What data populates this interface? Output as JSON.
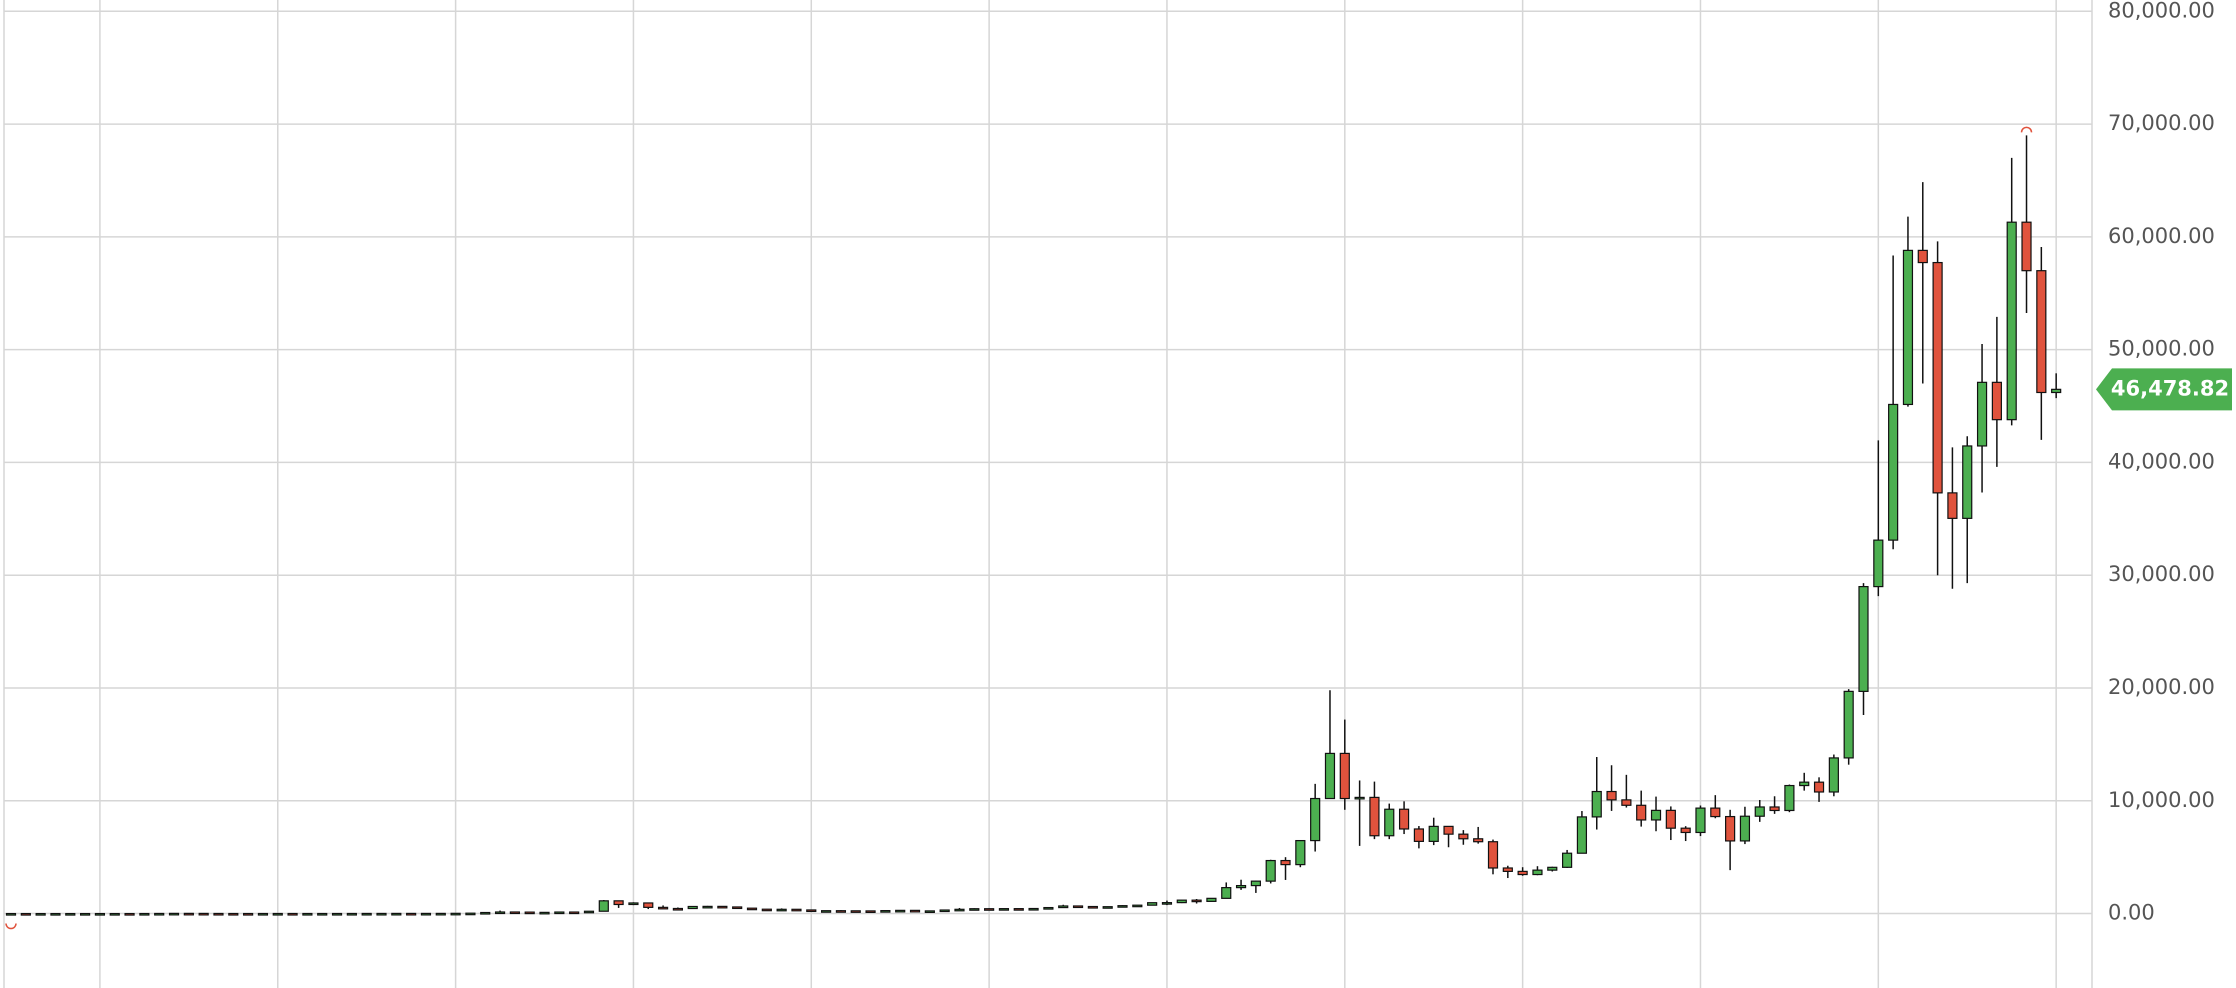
{
  "chart_data": {
    "type": "candlestick",
    "up_color": "#4caf50",
    "down_color": "#e0533d",
    "wick_color": "#111111",
    "grid": true,
    "ylim": [
      -6600,
      81000
    ],
    "yticks": [
      {
        "value": 0,
        "label": "0.00"
      },
      {
        "value": 10000,
        "label": "10,000.00"
      },
      {
        "value": 20000,
        "label": "20,000.00"
      },
      {
        "value": 30000,
        "label": "30,000.00"
      },
      {
        "value": 40000,
        "label": "40,000.00"
      },
      {
        "value": 50000,
        "label": "50,000.00"
      },
      {
        "value": 60000,
        "label": "60,000.00"
      },
      {
        "value": 70000,
        "label": "70,000.00"
      },
      {
        "value": 80000,
        "label": "80,000.00"
      }
    ],
    "last_close_label": "46,478.82",
    "open": [
      0.05,
      0.07,
      0.06,
      0.06,
      0.19,
      0.21,
      0.3,
      0.5,
      0.9,
      0.8,
      3.5,
      8.7,
      16,
      13,
      8,
      5,
      3.2,
      3,
      4.7,
      5.5,
      4.9,
      4.9,
      5,
      5.2,
      6.7,
      9.4,
      10.1,
      12.4,
      11.2,
      12.5,
      13.5,
      20.4,
      33.4,
      93,
      139,
      129,
      97,
      106,
      135,
      132,
      206,
      1129,
      805,
      940,
      550,
      450,
      447,
      627,
      637,
      586,
      478,
      387,
      338,
      378,
      320,
      218,
      254,
      244,
      236,
      230,
      263,
      284,
      230,
      236,
      314,
      377,
      430,
      368,
      437,
      416,
      448,
      531,
      673,
      624,
      573,
      609,
      700,
      743,
      963,
      970,
      1190,
      1080,
      1350,
      2300,
      2480,
      2875,
      4700,
      4340,
      6470,
      10200,
      14200,
      10200,
      10300,
      6900,
      9250,
      7500,
      6400,
      7730,
      7040,
      6630,
      6370,
      4040,
      3740,
      3460,
      3850,
      4100,
      5350,
      8570,
      10820,
      10080,
      9600,
      8300,
      9150,
      7570,
      7190,
      9350,
      8600,
      6440,
      8630,
      9450,
      9140,
      11350,
      11650,
      10780,
      13800,
      19700,
      28990,
      33110,
      45140,
      58800,
      57720,
      37300,
      35040,
      41460,
      47100,
      43790,
      61300,
      57000,
      46200
    ],
    "high": [
      0.1,
      0.07,
      0.2,
      0.2,
      0.5,
      0.3,
      0.5,
      1.1,
      0.9,
      3.8,
      9,
      32,
      17,
      14,
      9,
      5.5,
      3.5,
      4.8,
      7.4,
      6.3,
      5.4,
      5.3,
      5.2,
      6.8,
      9.6,
      16,
      12.6,
      12.8,
      12.8,
      13.8,
      20.4,
      33.6,
      94,
      266,
      140,
      130,
      110,
      137,
      145,
      210,
      1200,
      1160,
      1000,
      940,
      720,
      540,
      630,
      680,
      650,
      600,
      490,
      410,
      460,
      380,
      320,
      265,
      300,
      262,
      247,
      268,
      317,
      285,
      246,
      335,
      495,
      467,
      463,
      448,
      440,
      466,
      550,
      780,
      704,
      626,
      630,
      740,
      750,
      980,
      1150,
      1210,
      1290,
      1350,
      2760,
      3000,
      2920,
      4770,
      5000,
      6470,
      11500,
      19800,
      17200,
      11800,
      11700,
      9750,
      9950,
      7760,
      8500,
      7760,
      7400,
      7680,
      6560,
      4240,
      4110,
      4200,
      4150,
      5640,
      9090,
      13880,
      13150,
      12300,
      10900,
      10370,
      9500,
      7750,
      9580,
      10500,
      9200,
      9470,
      10070,
      10400,
      11440,
      12480,
      12080,
      14100,
      19900,
      29300,
      41950,
      58350,
      61790,
      64850,
      59600,
      41330,
      42320,
      50500,
      52900,
      67000,
      69000,
      59100,
      47900
    ],
    "low": [
      0.05,
      0.06,
      0.06,
      0.06,
      0.19,
      0.2,
      0.3,
      0.5,
      0.7,
      0.6,
      3,
      8,
      12,
      7,
      4.5,
      2,
      2,
      2.8,
      4.6,
      4.3,
      4.7,
      4.8,
      4.9,
      5.2,
      6.5,
      7,
      9.8,
      9.8,
      10.4,
      12.4,
      13,
      19.6,
      33,
      50,
      78,
      86,
      66,
      98,
      121,
      104,
      203,
      500,
      750,
      400,
      440,
      340,
      420,
      540,
      570,
      440,
      350,
      275,
      315,
      300,
      170,
      212,
      240,
      215,
      228,
      220,
      253,
      198,
      226,
      235,
      300,
      350,
      350,
      366,
      400,
      414,
      440,
      528,
      600,
      470,
      570,
      606,
      680,
      740,
      750,
      930,
      890,
      1060,
      1350,
      2100,
      1830,
      2670,
      2980,
      4110,
      5500,
      10200,
      9200,
      6000,
      6600,
      6600,
      7050,
      5780,
      6070,
      5880,
      6100,
      6200,
      3480,
      3150,
      3350,
      3400,
      3730,
      4040,
      5350,
      7450,
      9100,
      9400,
      7710,
      7300,
      6520,
      6430,
      6870,
      8450,
      3850,
      6160,
      8130,
      8840,
      8990,
      10900,
      9900,
      10400,
      13200,
      17600,
      28150,
      32300,
      44950,
      47000,
      30000,
      28800,
      29300,
      37330,
      39600,
      43290,
      53250,
      42000,
      45700
    ],
    "close": [
      0.07,
      0.06,
      0.06,
      0.19,
      0.21,
      0.3,
      0.5,
      0.9,
      0.8,
      3.5,
      8.7,
      16,
      13,
      8,
      5,
      3.2,
      3,
      4.7,
      5.5,
      4.9,
      4.9,
      5,
      5.2,
      6.7,
      9.4,
      10.1,
      12.4,
      11.2,
      12.5,
      13.5,
      20.4,
      33.4,
      93,
      139,
      129,
      97,
      106,
      135,
      132,
      206,
      1129,
      805,
      940,
      550,
      450,
      447,
      627,
      637,
      586,
      478,
      387,
      338,
      378,
      320,
      218,
      254,
      244,
      236,
      230,
      263,
      284,
      230,
      236,
      314,
      377,
      430,
      368,
      437,
      416,
      448,
      531,
      673,
      624,
      573,
      609,
      700,
      743,
      963,
      970,
      1190,
      1080,
      1350,
      2300,
      2480,
      2875,
      4700,
      4340,
      6470,
      10200,
      14200,
      10200,
      10300,
      6900,
      9250,
      7500,
      6400,
      7730,
      7040,
      6630,
      6370,
      4040,
      3740,
      3460,
      3850,
      4100,
      5350,
      8570,
      10820,
      10080,
      9600,
      8300,
      9150,
      7570,
      7190,
      9350,
      8600,
      6440,
      8630,
      9450,
      9140,
      11350,
      11650,
      10780,
      13800,
      19700,
      28990,
      33110,
      45140,
      58800,
      57720,
      37300,
      35040,
      41460,
      47100,
      43790,
      61300,
      57000,
      46200,
      46478.82
    ]
  }
}
